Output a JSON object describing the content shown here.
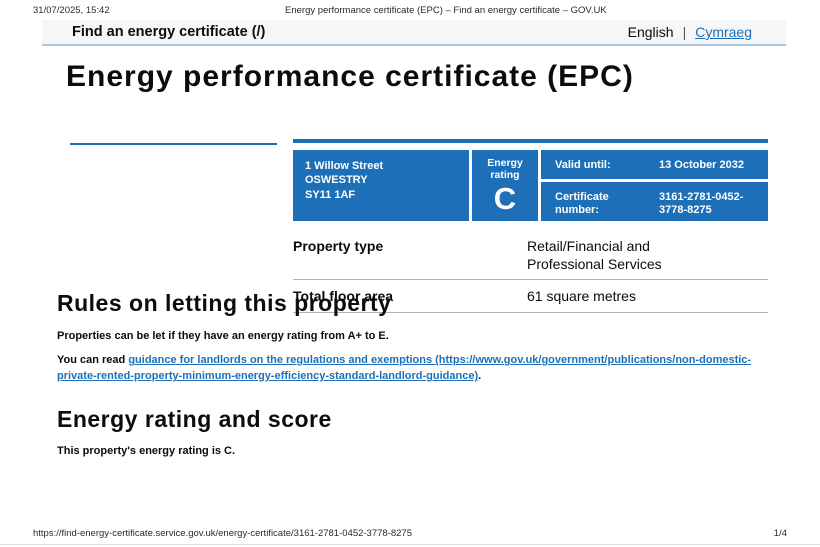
{
  "colors": {
    "govuk_blue": "#1d70b8",
    "link_blue": "#1d70b8",
    "table_border_gray": "#b1b4b6",
    "header_bar_bg": "#f4f6f8",
    "header_bar_border": "#aac7e0"
  },
  "print_chrome": {
    "datetime": "31/07/2025, 15:42",
    "document_title": "Energy performance certificate (EPC) – Find an energy certificate – GOV.UK",
    "footer_url": "https://find-energy-certificate.service.gov.uk/energy-certificate/3161-2781-0452-3778-8275",
    "page_indicator": "1/4"
  },
  "service_header": {
    "service_name": "Find an energy certificate (/)",
    "language_current": "English",
    "separator": "|",
    "language_link": "Cymraeg"
  },
  "page": {
    "title": "Energy performance certificate (EPC)"
  },
  "certificate_summary": {
    "address_lines": [
      "1 Willow Street",
      "OSWESTRY",
      "SY11 1AF"
    ],
    "energy_rating_label": "Energy rating",
    "energy_rating": "C",
    "valid_until_label": "Valid until:",
    "valid_until_value": "13 October 2032",
    "certificate_number_label": "Certificate number:",
    "certificate_number_value": "3161-2781-0452-3778-8275"
  },
  "property_details": {
    "rows": [
      {
        "label": "Property type",
        "value": "Retail/Financial and Professional Services"
      },
      {
        "label": "Total floor area",
        "value": "61 square metres"
      }
    ]
  },
  "rules_section": {
    "heading": "Rules on letting this property",
    "paragraph": "Properties can be let if they have an energy rating from A+ to E.",
    "link_prefix": "You can read ",
    "link_text": "guidance for landlords on the regulations and exemptions (https://www.gov.uk/government/publications/non-domestic-private-rented-property-minimum-energy-efficiency-standard-landlord-guidance)",
    "link_suffix": "."
  },
  "rating_section": {
    "heading": "Energy rating and score",
    "paragraph": "This property's energy rating is C."
  }
}
